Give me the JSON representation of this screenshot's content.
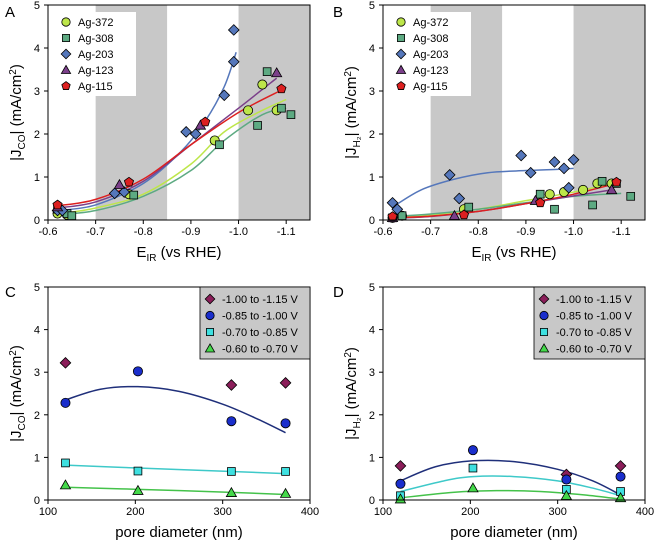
{
  "chart_data": [
    {
      "panel": "A",
      "type": "scatter",
      "xlabel_main": "E",
      "xlabel_sub": "IR",
      "xlabel_rest": " (vs RHE)",
      "ylabel_pre": "|J",
      "ylabel_sub": "CO",
      "ylabel_post": "| (mA/cm",
      "ylabel_sup": "2",
      "ylabel_end": ")",
      "xlim": [
        -0.6,
        -1.15
      ],
      "ylim": [
        0,
        5
      ],
      "xticks": [
        -0.6,
        -0.7,
        -0.8,
        -0.9,
        -1.0,
        -1.1
      ],
      "xtick_labels": [
        "-0.6",
        "-0.7",
        "-0.8",
        "-0.9",
        "-1.0",
        "-1.1"
      ],
      "yticks": [
        0,
        1,
        2,
        3,
        4,
        5
      ],
      "ytick_labels": [
        "0",
        "1",
        "2",
        "3",
        "4",
        "5"
      ],
      "shaded_x_ranges": [
        [
          -0.7,
          -0.85
        ],
        [
          -1.0,
          -1.15
        ]
      ],
      "legend_position": "top-left",
      "series": [
        {
          "name": "Ag-372",
          "marker": "circle",
          "color": "#bde64a",
          "x": [
            -0.62,
            -0.64,
            -0.77,
            -0.95,
            -1.02,
            -1.05,
            -1.08
          ],
          "y": [
            0.15,
            0.12,
            0.6,
            1.85,
            2.55,
            3.15,
            2.55
          ],
          "fit": [
            [
              -0.62,
              0.14
            ],
            [
              -0.7,
              0.28
            ],
            [
              -0.8,
              0.6
            ],
            [
              -0.9,
              1.3
            ],
            [
              -0.97,
              2.05
            ],
            [
              -1.05,
              2.55
            ],
            [
              -1.1,
              2.8
            ]
          ]
        },
        {
          "name": "Ag-308",
          "marker": "square",
          "color": "#5daa82",
          "x": [
            -0.62,
            -0.64,
            -0.65,
            -0.78,
            -0.96,
            -1.04,
            -1.06,
            -1.09,
            -1.11
          ],
          "y": [
            0.25,
            0.15,
            0.1,
            0.58,
            1.75,
            2.2,
            3.45,
            2.6,
            2.45
          ],
          "fit": [
            [
              -0.62,
              0.12
            ],
            [
              -0.7,
              0.22
            ],
            [
              -0.8,
              0.55
            ],
            [
              -0.9,
              1.15
            ],
            [
              -0.97,
              1.85
            ],
            [
              -1.05,
              2.45
            ],
            [
              -1.1,
              2.6
            ]
          ]
        },
        {
          "name": "Ag-203",
          "marker": "diamond",
          "color": "#5577bb",
          "x": [
            -0.62,
            -0.63,
            -0.74,
            -0.76,
            -0.89,
            -0.91,
            -0.97,
            -0.99,
            -0.99
          ],
          "y": [
            0.22,
            0.22,
            0.62,
            0.65,
            2.05,
            2.0,
            2.9,
            3.68,
            4.42
          ],
          "fit": [
            [
              -0.62,
              0.22
            ],
            [
              -0.7,
              0.35
            ],
            [
              -0.8,
              0.85
            ],
            [
              -0.88,
              1.6
            ],
            [
              -0.93,
              2.3
            ],
            [
              -0.97,
              3.1
            ],
            [
              -0.995,
              3.9
            ]
          ]
        },
        {
          "name": "Ag-123",
          "marker": "triangle",
          "color": "#7b3f8a",
          "x": [
            -0.62,
            -0.75,
            -0.92,
            -1.08
          ],
          "y": [
            0.3,
            0.82,
            2.2,
            3.42
          ],
          "fit": [
            [
              -0.62,
              0.28
            ],
            [
              -0.7,
              0.42
            ],
            [
              -0.8,
              0.9
            ],
            [
              -0.9,
              1.75
            ],
            [
              -1.0,
              2.6
            ],
            [
              -1.08,
              3.3
            ]
          ]
        },
        {
          "name": "Ag-115",
          "marker": "pentagon",
          "color": "#dd2020",
          "x": [
            -0.62,
            -0.77,
            -0.93,
            -1.09
          ],
          "y": [
            0.35,
            0.88,
            2.28,
            3.05
          ],
          "fit": [
            [
              -0.62,
              0.33
            ],
            [
              -0.7,
              0.48
            ],
            [
              -0.8,
              0.95
            ],
            [
              -0.9,
              1.75
            ],
            [
              -1.0,
              2.5
            ],
            [
              -1.09,
              3.02
            ]
          ]
        }
      ]
    },
    {
      "panel": "B",
      "type": "scatter",
      "xlabel_main": "E",
      "xlabel_sub": "IR",
      "xlabel_rest": " (vs RHE)",
      "ylabel_pre": "|J",
      "ylabel_sub": "H₂",
      "ylabel_post": "| (mA/cm",
      "ylabel_sup": "2",
      "ylabel_end": ")",
      "xlim": [
        -0.6,
        -1.15
      ],
      "ylim": [
        0,
        5
      ],
      "xticks": [
        -0.6,
        -0.7,
        -0.8,
        -0.9,
        -1.0,
        -1.1
      ],
      "xtick_labels": [
        "-0.6",
        "-0.7",
        "-0.8",
        "-0.9",
        "-1.0",
        "-1.1"
      ],
      "yticks": [
        0,
        1,
        2,
        3,
        4,
        5
      ],
      "ytick_labels": [
        "0",
        "1",
        "2",
        "3",
        "4",
        "5"
      ],
      "shaded_x_ranges": [
        [
          -0.7,
          -0.85
        ],
        [
          -1.0,
          -1.15
        ]
      ],
      "legend_position": "top-left",
      "series": [
        {
          "name": "Ag-372",
          "marker": "circle",
          "color": "#bde64a",
          "x": [
            -0.62,
            -0.64,
            -0.77,
            -0.95,
            -0.98,
            -1.02,
            -1.05,
            -1.08
          ],
          "y": [
            0.05,
            0.1,
            0.25,
            0.6,
            0.65,
            0.7,
            0.85,
            0.85
          ],
          "fit": [
            [
              -0.62,
              0.06
            ],
            [
              -0.7,
              0.12
            ],
            [
              -0.8,
              0.25
            ],
            [
              -0.9,
              0.45
            ],
            [
              -1.0,
              0.65
            ],
            [
              -1.08,
              0.85
            ]
          ]
        },
        {
          "name": "Ag-308",
          "marker": "square",
          "color": "#5daa82",
          "x": [
            -0.62,
            -0.64,
            -0.78,
            -0.93,
            -0.96,
            -1.04,
            -1.06,
            -1.09,
            -1.12
          ],
          "y": [
            0.05,
            0.1,
            0.3,
            0.6,
            0.25,
            0.35,
            0.9,
            0.85,
            0.55
          ],
          "fit": [
            [
              -0.62,
              0.08
            ],
            [
              -0.7,
              0.14
            ],
            [
              -0.8,
              0.25
            ],
            [
              -0.9,
              0.4
            ],
            [
              -1.0,
              0.55
            ],
            [
              -1.1,
              0.62
            ]
          ]
        },
        {
          "name": "Ag-203",
          "marker": "diamond",
          "color": "#5577bb",
          "x": [
            -0.62,
            -0.63,
            -0.74,
            -0.76,
            -0.89,
            -0.91,
            -0.96,
            -0.98,
            -0.99,
            -1.0
          ],
          "y": [
            0.4,
            0.25,
            1.05,
            0.5,
            1.5,
            1.1,
            1.35,
            1.2,
            0.75,
            1.4
          ],
          "fit": [
            [
              -0.62,
              0.3
            ],
            [
              -0.68,
              0.7
            ],
            [
              -0.75,
              0.95
            ],
            [
              -0.82,
              1.1
            ],
            [
              -0.9,
              1.15
            ],
            [
              -0.97,
              1.18
            ],
            [
              -1.0,
              1.2
            ]
          ]
        },
        {
          "name": "Ag-123",
          "marker": "triangle",
          "color": "#7b3f8a",
          "x": [
            -0.62,
            -0.75,
            -0.92,
            -1.08
          ],
          "y": [
            0.05,
            0.1,
            0.45,
            0.7
          ],
          "fit": [
            [
              -0.62,
              0.04
            ],
            [
              -0.7,
              0.08
            ],
            [
              -0.8,
              0.2
            ],
            [
              -0.9,
              0.38
            ],
            [
              -1.0,
              0.56
            ],
            [
              -1.08,
              0.7
            ]
          ]
        },
        {
          "name": "Ag-115",
          "marker": "pentagon",
          "color": "#dd2020",
          "x": [
            -0.62,
            -0.77,
            -0.93,
            -1.09
          ],
          "y": [
            0.08,
            0.12,
            0.4,
            0.88
          ],
          "fit": [
            [
              -0.62,
              0.05
            ],
            [
              -0.7,
              0.09
            ],
            [
              -0.8,
              0.2
            ],
            [
              -0.9,
              0.38
            ],
            [
              -1.0,
              0.6
            ],
            [
              -1.09,
              0.85
            ]
          ]
        }
      ]
    },
    {
      "panel": "C",
      "type": "scatter",
      "xlabel_main": "pore diameter (nm)",
      "xlabel_sub": "",
      "xlabel_rest": "",
      "ylabel_pre": "|J",
      "ylabel_sub": "CO",
      "ylabel_post": "| (mA/cm",
      "ylabel_sup": "2",
      "ylabel_end": ")",
      "xlim": [
        100,
        400
      ],
      "ylim": [
        0,
        5
      ],
      "xticks": [
        100,
        200,
        300,
        400
      ],
      "xtick_labels": [
        "100",
        "200",
        "300",
        "400"
      ],
      "yticks": [
        0,
        1,
        2,
        3,
        4,
        5
      ],
      "ytick_labels": [
        "0",
        "1",
        "2",
        "3",
        "4",
        "5"
      ],
      "legend_position": "top-right",
      "series": [
        {
          "name": "-1.00 to -1.15 V",
          "marker": "diamond",
          "color": "#8b1e5a",
          "x": [
            120,
            310,
            372
          ],
          "y": [
            3.22,
            2.7,
            2.75
          ],
          "fit": null
        },
        {
          "name": "-0.85 to -1.00 V",
          "marker": "circle",
          "color": "#1a2ecc",
          "x": [
            120,
            203,
            310,
            372
          ],
          "y": [
            2.28,
            3.02,
            1.85,
            1.8
          ],
          "fit": [
            [
              120,
              2.35
            ],
            [
              160,
              2.6
            ],
            [
              203,
              2.66
            ],
            [
              250,
              2.55
            ],
            [
              300,
              2.25
            ],
            [
              340,
              1.9
            ],
            [
              372,
              1.58
            ]
          ],
          "fit_color": "#1f2f7a"
        },
        {
          "name": "-0.70 to -0.85 V",
          "marker": "square",
          "color": "#3ee0e0",
          "x": [
            120,
            203,
            310,
            372
          ],
          "y": [
            0.87,
            0.68,
            0.67,
            0.67
          ],
          "fit": [
            [
              120,
              0.82
            ],
            [
              203,
              0.75
            ],
            [
              310,
              0.67
            ],
            [
              372,
              0.62
            ]
          ],
          "fit_color": "#3ec9c9"
        },
        {
          "name": "-0.60 to -0.70 V",
          "marker": "triangle",
          "color": "#44d84a",
          "x": [
            120,
            203,
            310,
            372
          ],
          "y": [
            0.35,
            0.22,
            0.17,
            0.15
          ],
          "fit": [
            [
              120,
              0.3
            ],
            [
              203,
              0.25
            ],
            [
              310,
              0.18
            ],
            [
              372,
              0.13
            ]
          ],
          "fit_color": "#44c24a"
        }
      ]
    },
    {
      "panel": "D",
      "type": "scatter",
      "xlabel_main": "pore diameter (nm)",
      "xlabel_sub": "",
      "xlabel_rest": "",
      "ylabel_pre": "|J",
      "ylabel_sub": "H₂",
      "ylabel_post": "| (mA/cm",
      "ylabel_sup": "2",
      "ylabel_end": ")",
      "xlim": [
        100,
        400
      ],
      "ylim": [
        0,
        5
      ],
      "xticks": [
        100,
        200,
        300,
        400
      ],
      "xtick_labels": [
        "100",
        "200",
        "300",
        "400"
      ],
      "yticks": [
        0,
        1,
        2,
        3,
        4,
        5
      ],
      "ytick_labels": [
        "0",
        "1",
        "2",
        "3",
        "4",
        "5"
      ],
      "legend_position": "top-right",
      "series": [
        {
          "name": "-1.00 to -1.15 V",
          "marker": "diamond",
          "color": "#8b1e5a",
          "x": [
            120,
            310,
            372
          ],
          "y": [
            0.8,
            0.6,
            0.8
          ],
          "fit": null
        },
        {
          "name": "-0.85 to -1.00 V",
          "marker": "circle",
          "color": "#1a2ecc",
          "x": [
            120,
            203,
            310,
            372
          ],
          "y": [
            0.38,
            1.17,
            0.48,
            0.55
          ],
          "fit": [
            [
              120,
              0.45
            ],
            [
              160,
              0.78
            ],
            [
              203,
              0.92
            ],
            [
              250,
              0.9
            ],
            [
              300,
              0.72
            ],
            [
              340,
              0.45
            ],
            [
              372,
              0.12
            ]
          ],
          "fit_color": "#1f2f7a"
        },
        {
          "name": "-0.70 to -0.85 V",
          "marker": "square",
          "color": "#3ee0e0",
          "x": [
            120,
            203,
            310,
            372
          ],
          "y": [
            0.1,
            0.75,
            0.25,
            0.2
          ],
          "fit": [
            [
              120,
              0.2
            ],
            [
              170,
              0.45
            ],
            [
              203,
              0.55
            ],
            [
              250,
              0.55
            ],
            [
              300,
              0.45
            ],
            [
              340,
              0.28
            ],
            [
              372,
              0.1
            ]
          ],
          "fit_color": "#3ec9c9"
        },
        {
          "name": "-0.60 to -0.70 V",
          "marker": "triangle",
          "color": "#44d84a",
          "x": [
            120,
            203,
            310,
            372
          ],
          "y": [
            0.02,
            0.28,
            0.1,
            0.05
          ],
          "fit": [
            [
              120,
              0.05
            ],
            [
              180,
              0.18
            ],
            [
              230,
              0.22
            ],
            [
              280,
              0.2
            ],
            [
              330,
              0.12
            ],
            [
              372,
              0.02
            ]
          ],
          "fit_color": "#44c24a"
        }
      ]
    }
  ]
}
